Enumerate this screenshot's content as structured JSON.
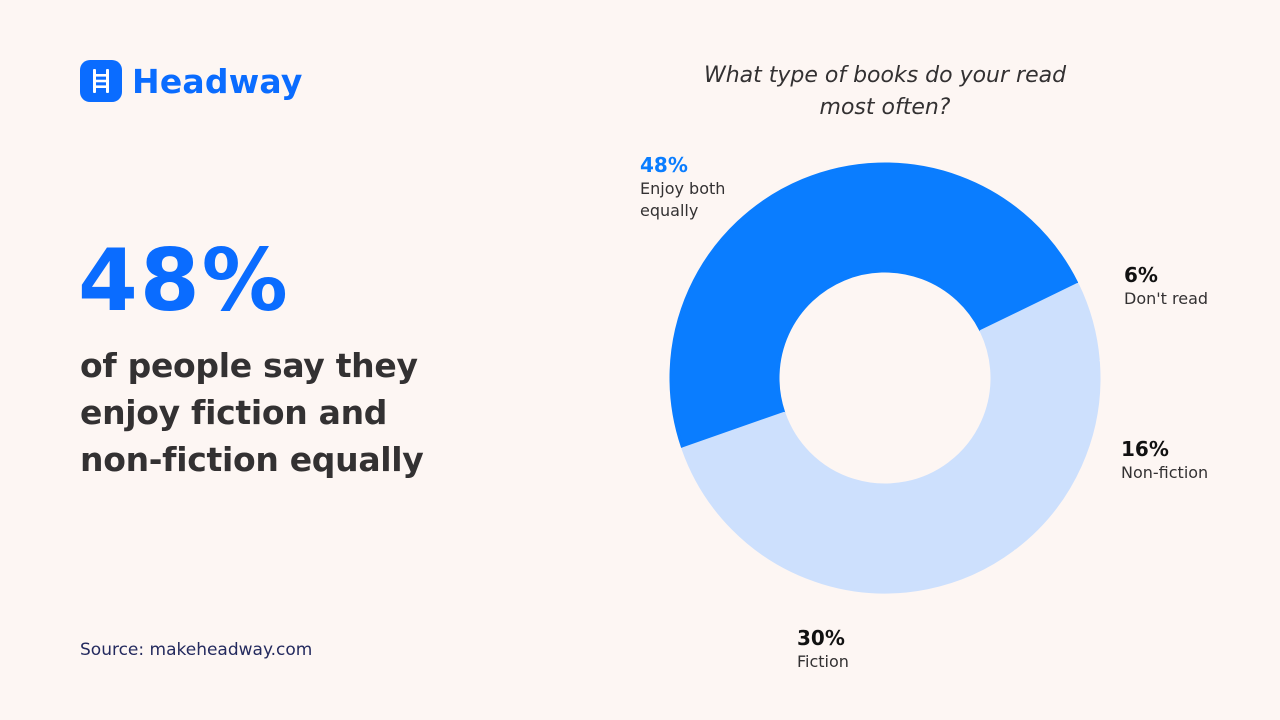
{
  "brand": {
    "name": "Headway",
    "icon": "ladder-icon",
    "color": "#0a6cff"
  },
  "headline": {
    "stat": "48%",
    "description": "of people say they enjoy fiction and non-fiction equally"
  },
  "source": "Source: makeheadway.com",
  "colors": {
    "background": "#fdf6f3",
    "primary": "#0a7dff",
    "secondary": "#cde0fd",
    "text": "#333132"
  },
  "labels": {
    "enjoy_both": {
      "pct": "48%",
      "name": "Enjoy both equally"
    },
    "dont_read": {
      "pct": "6%",
      "name": "Don't read"
    },
    "non_fiction": {
      "pct": "16%",
      "name": "Non-fiction"
    },
    "fiction": {
      "pct": "30%",
      "name": "Fiction"
    }
  },
  "chart_data": {
    "type": "pie",
    "variant": "donut",
    "title": "What type of books do your read most often?",
    "categories": [
      "Enjoy both equally",
      "Don't read",
      "Non-fiction",
      "Fiction"
    ],
    "values": [
      48,
      6,
      16,
      30
    ],
    "unit": "%",
    "colors": [
      "#0a7dff",
      "#cde0fd",
      "#cde0fd",
      "#cde0fd"
    ],
    "start_angle_deg": 251,
    "direction": "clockwise",
    "center": [
      885,
      378
    ],
    "outer_radius": 214,
    "inner_radius": 107,
    "legend": "none (direct labels)"
  }
}
